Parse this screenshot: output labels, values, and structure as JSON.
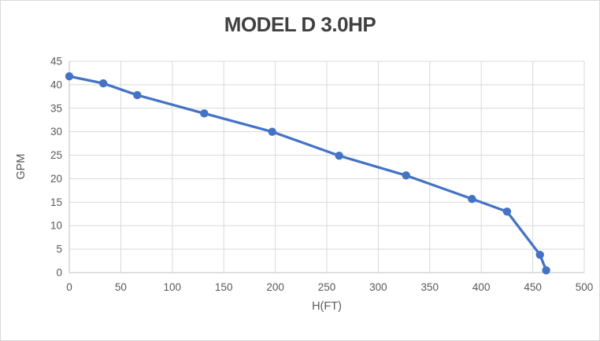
{
  "chart_data": {
    "type": "line",
    "title": "MODEL D 3.0HP",
    "xlabel": "H(FT)",
    "ylabel": "GPM",
    "xlim": [
      0,
      500
    ],
    "ylim": [
      0,
      45
    ],
    "x_ticks": [
      0,
      50,
      100,
      150,
      200,
      250,
      300,
      350,
      400,
      450,
      500
    ],
    "y_ticks": [
      0,
      5,
      10,
      15,
      20,
      25,
      30,
      35,
      40,
      45
    ],
    "grid": true,
    "legend_position": "none",
    "series": [
      {
        "name": "MODEL D 3.0HP",
        "marker": "circle",
        "points": [
          [
            0,
            41.8
          ],
          [
            33,
            40.3
          ],
          [
            66,
            37.8
          ],
          [
            131,
            33.9
          ],
          [
            197,
            30.0
          ],
          [
            262,
            24.9
          ],
          [
            327,
            20.7
          ],
          [
            391,
            15.7
          ],
          [
            425,
            13.0
          ],
          [
            457,
            3.8
          ],
          [
            463,
            0.5
          ]
        ]
      }
    ],
    "colors": {
      "line": "#4472C4",
      "grid": "#D9D9D9",
      "axis": "#BFBFBF",
      "tick_text": "#595959",
      "title_text": "#404040",
      "background": "#FFFFFF"
    }
  }
}
